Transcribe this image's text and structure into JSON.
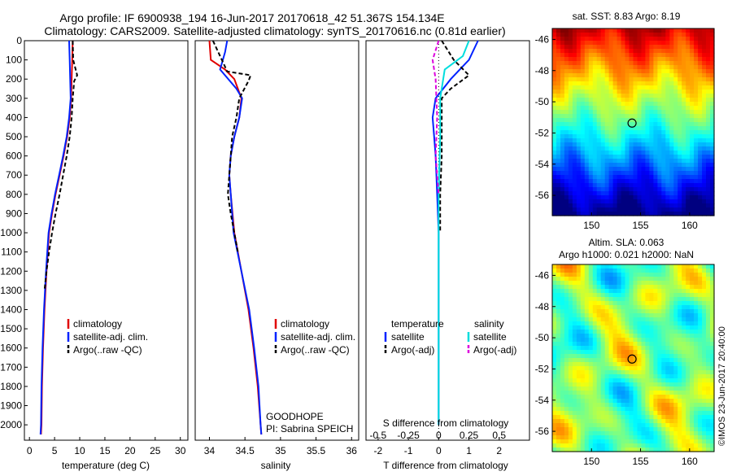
{
  "header": {
    "title1": "Argo profile: IF 6900938_194 16-Jun-2017 20170618_42 51.367S 154.134E",
    "title2": "Climatology: CARS2009. Satellite-adjusted climatology: synTS_20170616.nc (0.81d earlier)"
  },
  "colors": {
    "climatology": "#e00000",
    "satellite": "#0022ff",
    "argo": "#000000",
    "sat_salinity": "#00dddd",
    "argo_salinity": "#dd00dd"
  },
  "chart_data": [
    {
      "type": "line",
      "id": "temperature",
      "xlabel": "temperature (deg C)",
      "ylabel": "",
      "xlim": [
        -1,
        31.5
      ],
      "ylim": [
        2080,
        0
      ],
      "xticks": [
        "0",
        "5",
        "10",
        "15",
        "20",
        "25",
        "30"
      ],
      "yticks": [
        "0",
        "100",
        "200",
        "300",
        "400",
        "500",
        "600",
        "700",
        "800",
        "900",
        "1000",
        "1100",
        "1200",
        "1300",
        "1400",
        "1500",
        "1600",
        "1700",
        "1800",
        "1900",
        "2000"
      ],
      "legend": [
        "climatology",
        "satellite-adj. clim.",
        "Argo(..raw -QC)"
      ],
      "series": [
        {
          "name": "climatology",
          "x": [
            8.6,
            8.5,
            8.4,
            8.3,
            8.0,
            7.5,
            6.8,
            6.0,
            5.2,
            4.5,
            3.9,
            3.4,
            3.0,
            2.7,
            2.5,
            2.4,
            2.3
          ],
          "y": [
            0,
            100,
            200,
            300,
            400,
            500,
            600,
            700,
            800,
            900,
            1000,
            1200,
            1400,
            1600,
            1800,
            2000,
            2050
          ]
        },
        {
          "name": "satellite-adj. clim.",
          "x": [
            7.9,
            8.0,
            8.1,
            8.2,
            7.9,
            7.4,
            6.7,
            5.9,
            5.1,
            4.4,
            3.8,
            3.3,
            2.9,
            2.6,
            2.4,
            2.3,
            2.2
          ],
          "y": [
            0,
            100,
            200,
            300,
            400,
            500,
            600,
            700,
            800,
            900,
            1000,
            1200,
            1400,
            1600,
            1800,
            2000,
            2050
          ]
        },
        {
          "name": "Argo(..raw -QC)",
          "x": [
            8.6,
            8.7,
            9.5,
            8.9,
            8.6,
            8.4,
            8.0,
            7.4,
            6.7,
            6.0,
            5.2,
            4.5,
            3.9,
            3.4,
            3.0
          ],
          "y": [
            0,
            100,
            180,
            210,
            300,
            400,
            500,
            600,
            700,
            800,
            900,
            1000,
            1100,
            1200,
            1300
          ]
        }
      ]
    },
    {
      "type": "line",
      "id": "salinity",
      "xlabel": "salinity",
      "xlim": [
        33.8,
        36.1
      ],
      "ylim": [
        2080,
        0
      ],
      "xticks": [
        "34",
        "34.5",
        "35",
        "35.5",
        "36"
      ],
      "legend": [
        "climatology",
        "satellite-adj. clim.",
        "Argo(..raw -QC)"
      ],
      "annotation": [
        "GOODHOPE",
        "PI: Sabrina SPEICH"
      ],
      "series": [
        {
          "name": "climatology",
          "x": [
            34.0,
            34.02,
            34.22,
            34.35,
            34.45,
            34.42,
            34.35,
            34.3,
            34.28,
            34.3,
            34.35,
            34.45,
            34.55,
            34.62,
            34.68,
            34.72,
            34.73
          ],
          "y": [
            0,
            100,
            150,
            200,
            300,
            400,
            500,
            600,
            700,
            800,
            1000,
            1200,
            1400,
            1600,
            1800,
            2000,
            2050
          ]
        },
        {
          "name": "satellite-adj. clim.",
          "x": [
            34.25,
            34.22,
            34.15,
            34.38,
            34.46,
            34.42,
            34.35,
            34.3,
            34.28,
            34.3,
            34.34,
            34.45,
            34.56,
            34.63,
            34.69,
            34.72,
            34.73
          ],
          "y": [
            0,
            60,
            150,
            250,
            300,
            400,
            500,
            600,
            700,
            800,
            1000,
            1200,
            1400,
            1600,
            1800,
            2000,
            2050
          ]
        },
        {
          "name": "Argo(..raw -QC)",
          "x": [
            34.05,
            34.2,
            34.25,
            34.58,
            34.55,
            34.42,
            34.38,
            34.32,
            34.3,
            34.28,
            34.26,
            34.28,
            34.3,
            34.35,
            34.4
          ],
          "y": [
            0,
            120,
            160,
            180,
            210,
            300,
            400,
            500,
            600,
            700,
            800,
            850,
            900,
            1000,
            1100
          ]
        }
      ]
    },
    {
      "type": "line",
      "id": "difference",
      "xlabel": "T difference from climatology",
      "xlabel_top": "S difference from climatology",
      "xlim": [
        -2.4,
        3.0
      ],
      "ylim": [
        2080,
        0
      ],
      "xticks": [
        "-2",
        "-1",
        "0",
        "1",
        "2"
      ],
      "xticks_s": [
        "-0.5",
        "-0.25",
        "0",
        "0.25",
        "0.5"
      ],
      "legend_titles": [
        "temperature",
        "salinity"
      ],
      "legend_t": [
        "satellite",
        "Argo(-adj)"
      ],
      "legend_s": [
        "satellite",
        "Argo(-adj)"
      ],
      "series": [
        {
          "name": "satellite",
          "x": [
            1.3,
            1.0,
            0.4,
            -0.1,
            -0.2,
            -0.15,
            -0.1,
            -0.05,
            0,
            0,
            0,
            0,
            0
          ],
          "y": [
            0,
            100,
            200,
            300,
            400,
            500,
            600,
            800,
            1000,
            1200,
            1500,
            1800,
            2000
          ]
        },
        {
          "name": "Argo(-adj)",
          "x": [
            0.1,
            0.5,
            1.0,
            0.4,
            0.1,
            0.1,
            0.1,
            0.05,
            0.05
          ],
          "y": [
            0,
            100,
            180,
            250,
            300,
            400,
            600,
            800,
            1000
          ]
        },
        {
          "name": "satellite (salinity)",
          "x": [
            1.0,
            0.8,
            0.2,
            0.05,
            0.05,
            0.0,
            0.0,
            0.0,
            0.0,
            0.0
          ],
          "y": [
            0,
            80,
            150,
            300,
            500,
            800,
            1000,
            1300,
            1600,
            2000
          ]
        },
        {
          "name": "Argo(-adj) (salinity)",
          "x": [
            0.0,
            -0.2,
            -0.1,
            -0.05,
            -0.1,
            0.0
          ],
          "y": [
            0,
            100,
            200,
            400,
            600,
            800
          ]
        }
      ]
    },
    {
      "type": "heatmap",
      "id": "sst_map",
      "title": "sat. SST: 8.83 Argo: 8.19",
      "xlim": [
        146,
        162.5
      ],
      "ylim": [
        -57.3,
        -45.3
      ],
      "xticks": [
        "150",
        "155",
        "160"
      ],
      "yticks": [
        "-46",
        "-48",
        "-50",
        "-52",
        "-54",
        "-56"
      ],
      "marker": {
        "lon": 154.134,
        "lat": -51.367
      }
    },
    {
      "type": "heatmap",
      "id": "sla_map",
      "title1": "Altim. SLA: 0.063",
      "title2": "Argo h1000: 0.021 h2000: NaN",
      "xlim": [
        146,
        162.5
      ],
      "ylim": [
        -57.3,
        -45.3
      ],
      "xticks": [
        "150",
        "155",
        "160"
      ],
      "yticks": [
        "-46",
        "-48",
        "-50",
        "-52",
        "-54",
        "-56"
      ],
      "marker": {
        "lon": 154.134,
        "lat": -51.367
      },
      "vertical_text": "©IMOS 23-Jun-2017 20:40:00"
    }
  ]
}
